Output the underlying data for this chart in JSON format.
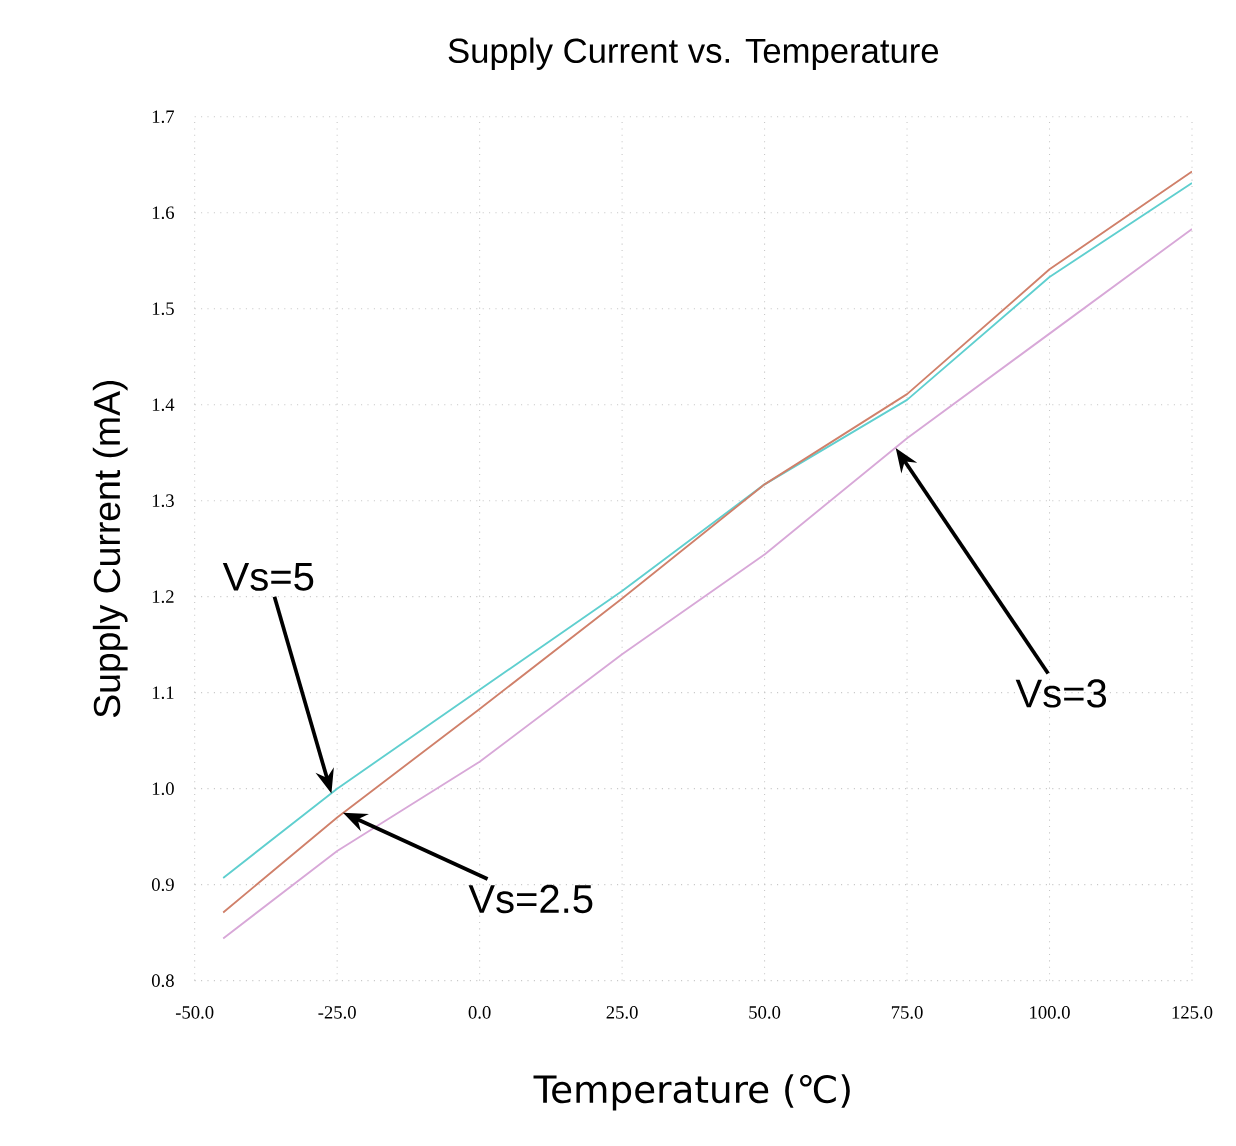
{
  "chart_data": {
    "type": "line",
    "title": "Supply Current vs. Temperature",
    "xlabel": "Temperature (℃)",
    "ylabel": "Supply Current (mA)",
    "xlim": [
      -50,
      125
    ],
    "ylim": [
      0.8,
      1.7
    ],
    "xticks": [
      {
        "value": -50,
        "label": "-50.0"
      },
      {
        "value": -25,
        "label": "-25.0"
      },
      {
        "value": 0,
        "label": "0.0"
      },
      {
        "value": 25,
        "label": "25.0"
      },
      {
        "value": 50,
        "label": "50.0"
      },
      {
        "value": 75,
        "label": "75.0"
      },
      {
        "value": 100,
        "label": "100.0"
      },
      {
        "value": 125,
        "label": "125.0"
      }
    ],
    "yticks": [
      0.8,
      0.9,
      {
        "value": 1.0,
        "label": "1.0"
      },
      1.1,
      1.2,
      1.3,
      1.4,
      1.5,
      1.6,
      1.7
    ],
    "grid": true,
    "marker": "none",
    "line_style": "solid",
    "x": [
      -45,
      -25,
      0,
      25,
      50,
      75,
      100,
      125
    ],
    "annotations": [
      {
        "text": "Vs=5",
        "x": -26,
        "y": 0.995
      },
      {
        "text": "Vs=2.5",
        "x": -24,
        "y": 0.975
      },
      {
        "text": "Vs=3",
        "x": 73,
        "y": 1.355
      }
    ],
    "series": [
      {
        "color": "#5fcfcf",
        "values": [
          0.907,
          1.0,
          1.103,
          1.206,
          1.317,
          1.405,
          1.533,
          1.631
        ]
      },
      {
        "color": "#d0806a",
        "values": [
          0.871,
          0.97,
          1.083,
          1.198,
          1.317,
          1.411,
          1.541,
          1.643
        ]
      },
      {
        "color": "#d8a8d8",
        "values": [
          0.844,
          0.935,
          1.028,
          1.14,
          1.244,
          1.365,
          1.474,
          1.583
        ]
      }
    ]
  }
}
